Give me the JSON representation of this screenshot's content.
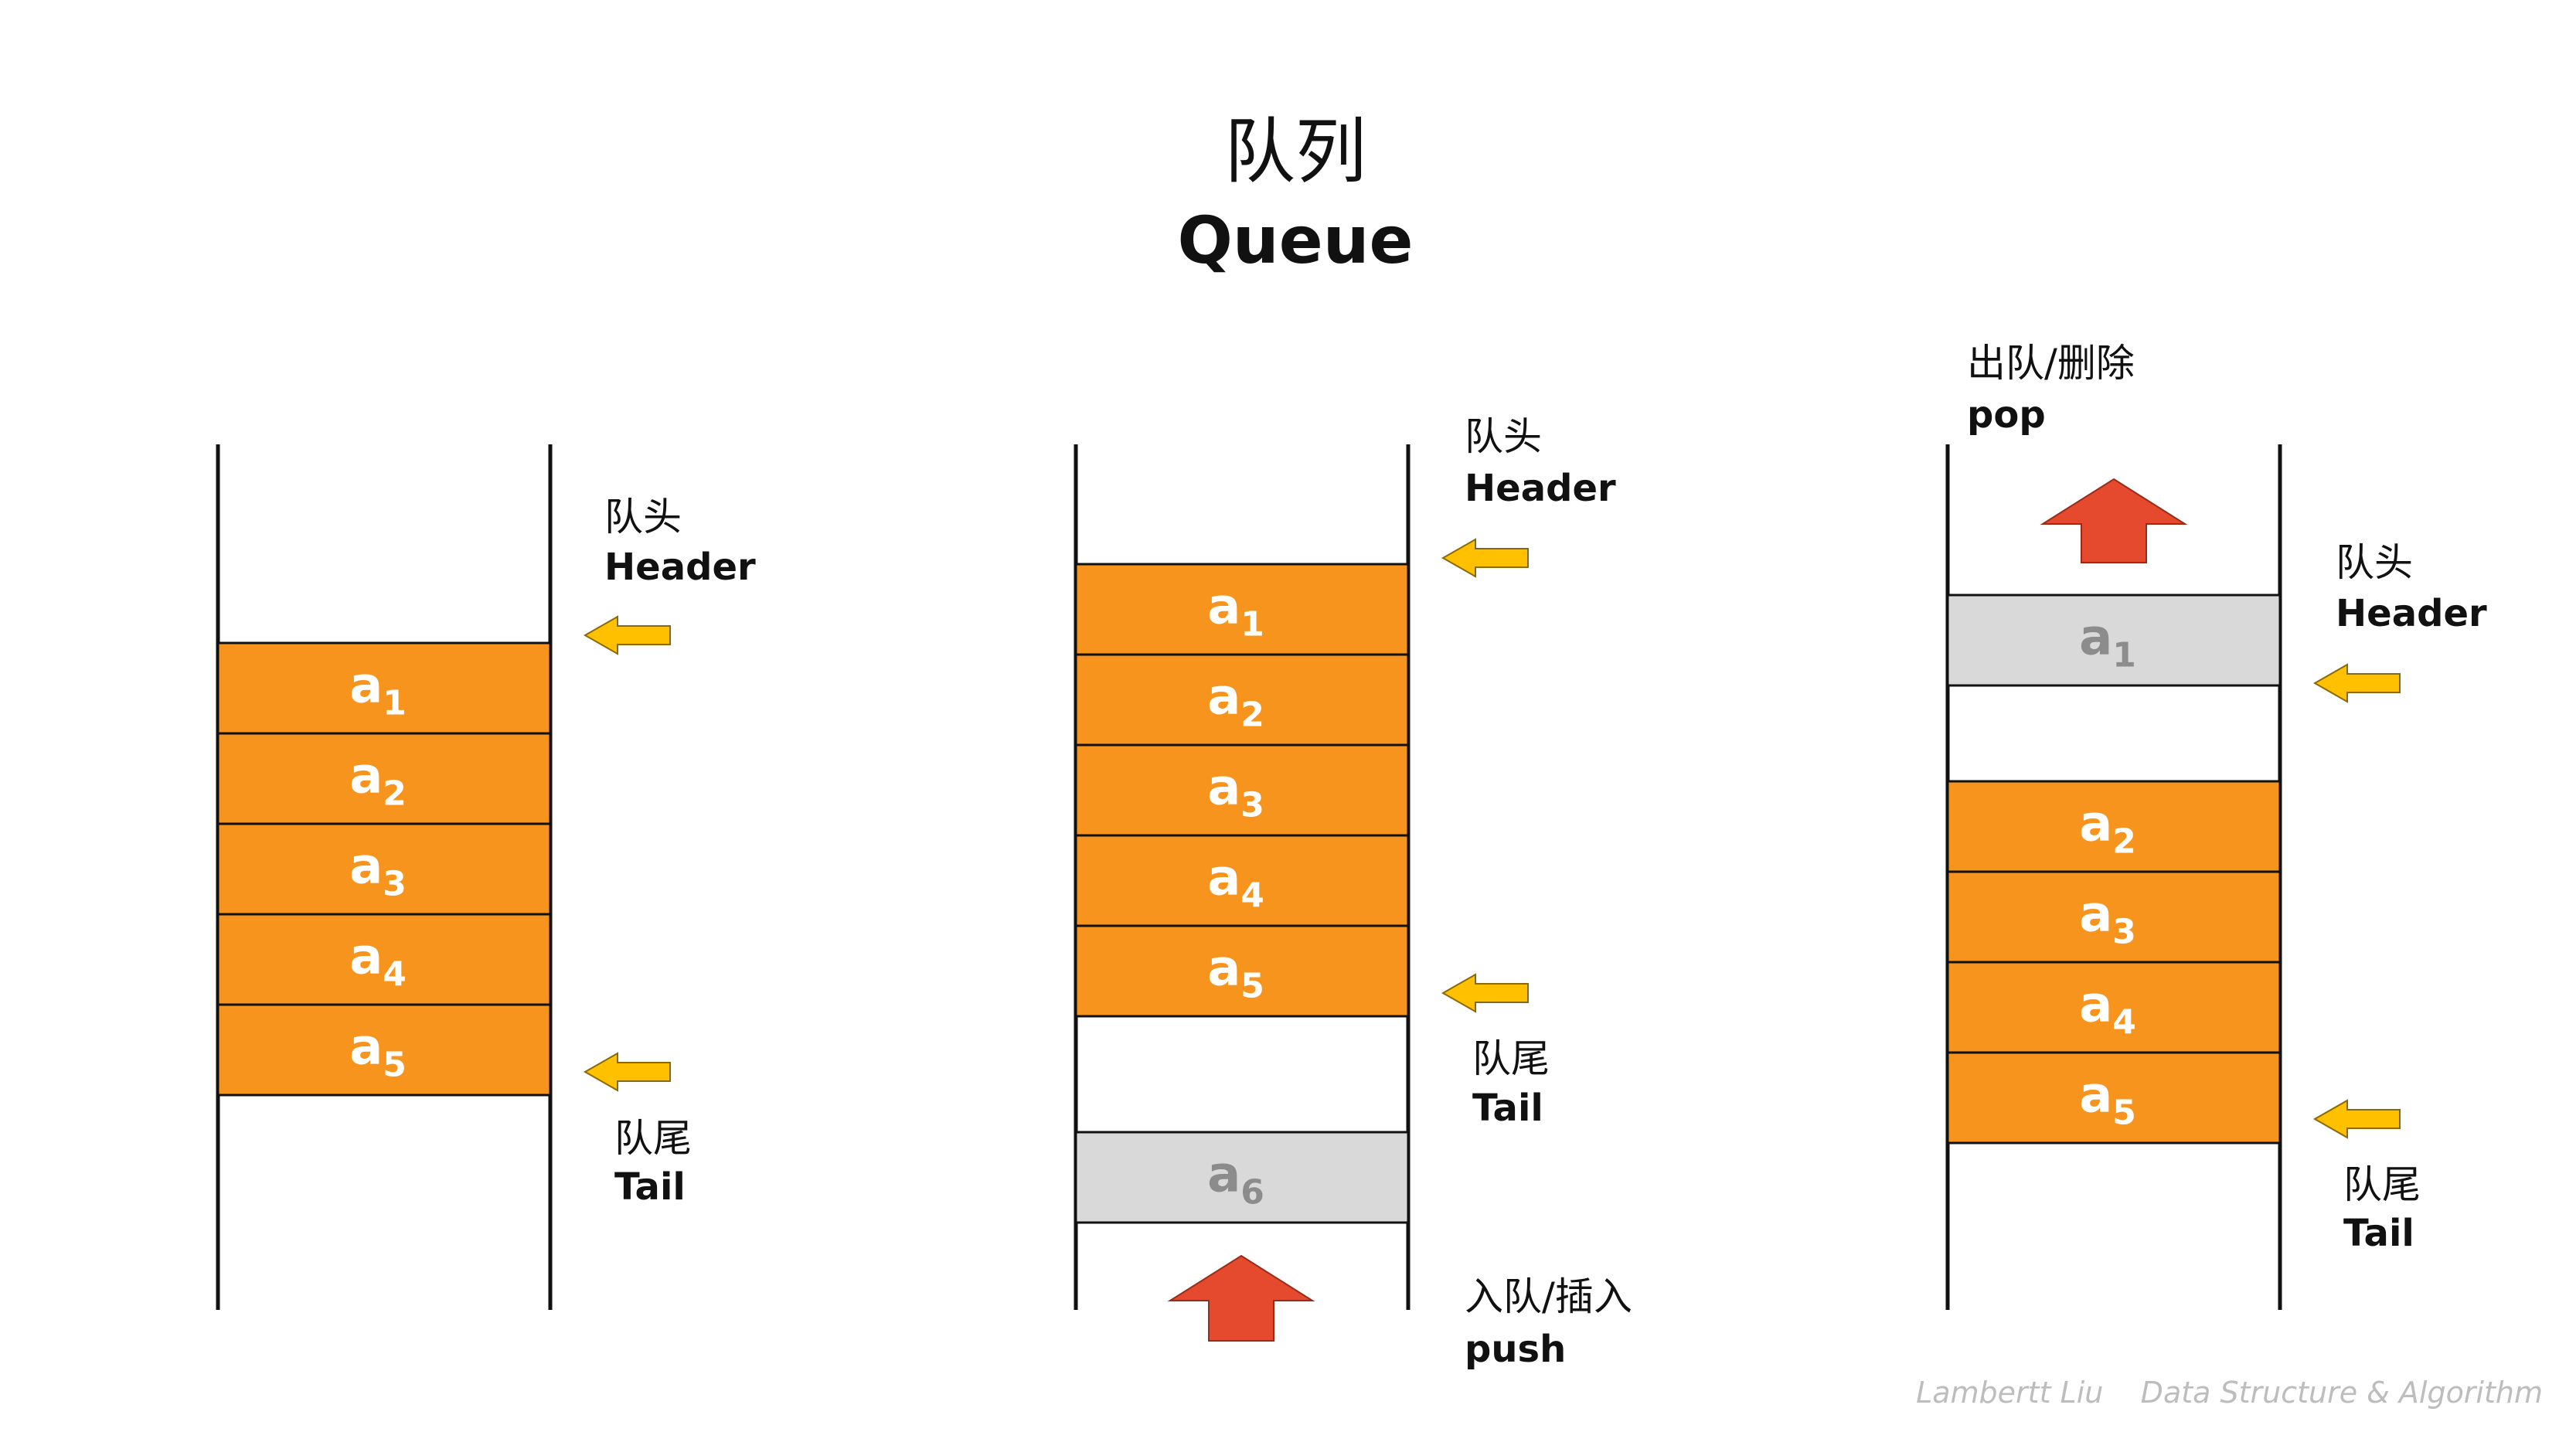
{
  "title": {
    "cn": "队列",
    "en": "Queue"
  },
  "colors": {
    "cell_active": "#f7941d",
    "cell_ghost": "#d9d9d9",
    "cell_text_active": "#ffffff",
    "cell_text_ghost": "#8c8c8c",
    "pointer_arrow": "#ffc000",
    "action_arrow": "#e64a2e",
    "wall": "#111111"
  },
  "panels": [
    {
      "name": "initial",
      "cells": [
        {
          "base": "a",
          "sub": "1",
          "state": "active"
        },
        {
          "base": "a",
          "sub": "2",
          "state": "active"
        },
        {
          "base": "a",
          "sub": "3",
          "state": "active"
        },
        {
          "base": "a",
          "sub": "4",
          "state": "active"
        },
        {
          "base": "a",
          "sub": "5",
          "state": "active"
        }
      ],
      "header_label": {
        "cn": "队头",
        "en": "Header"
      },
      "tail_label": {
        "cn": "队尾",
        "en": "Tail"
      }
    },
    {
      "name": "push",
      "cells": [
        {
          "base": "a",
          "sub": "1",
          "state": "active"
        },
        {
          "base": "a",
          "sub": "2",
          "state": "active"
        },
        {
          "base": "a",
          "sub": "3",
          "state": "active"
        },
        {
          "base": "a",
          "sub": "4",
          "state": "active"
        },
        {
          "base": "a",
          "sub": "5",
          "state": "active"
        },
        {
          "base": "a",
          "sub": "6",
          "state": "ghost"
        }
      ],
      "header_label": {
        "cn": "队头",
        "en": "Header"
      },
      "tail_label": {
        "cn": "队尾",
        "en": "Tail"
      },
      "action": {
        "cn": "入队/插入",
        "en": "push",
        "icon": "up-arrow-icon"
      }
    },
    {
      "name": "pop",
      "cells": [
        {
          "base": "a",
          "sub": "1",
          "state": "ghost"
        },
        {
          "base": "a",
          "sub": "2",
          "state": "active"
        },
        {
          "base": "a",
          "sub": "3",
          "state": "active"
        },
        {
          "base": "a",
          "sub": "4",
          "state": "active"
        },
        {
          "base": "a",
          "sub": "5",
          "state": "active"
        }
      ],
      "header_label": {
        "cn": "队头",
        "en": "Header"
      },
      "tail_label": {
        "cn": "队尾",
        "en": "Tail"
      },
      "action": {
        "cn": "出队/删除",
        "en": "pop",
        "icon": "up-arrow-icon"
      }
    }
  ],
  "footer": "Lambertt Liu    Data Structure & Algorithm"
}
